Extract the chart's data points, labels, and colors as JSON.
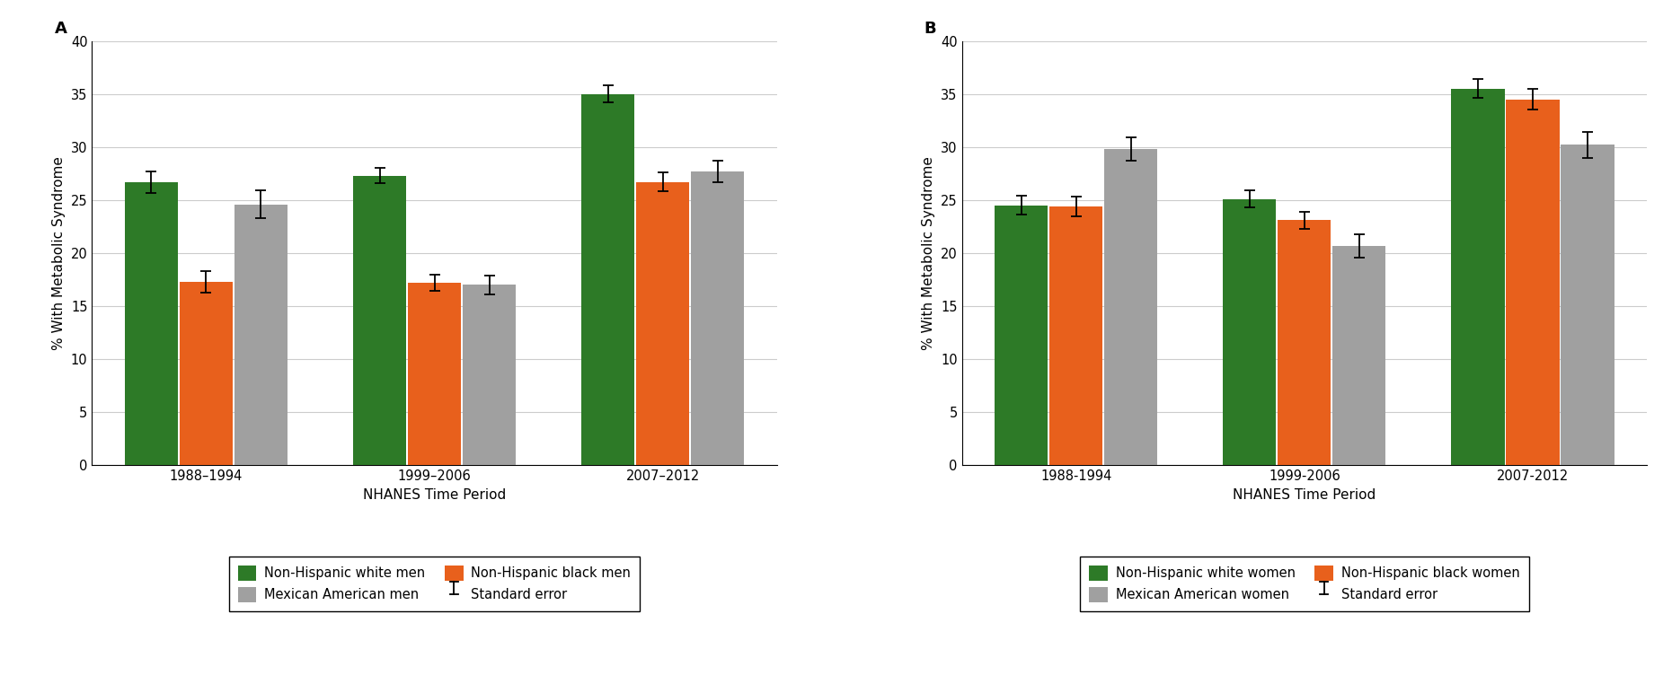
{
  "panel_A": {
    "title": "A",
    "groups": [
      "1988–1994",
      "1999–2006",
      "2007–2012"
    ],
    "series": [
      {
        "label": "Non-Hispanic white men",
        "color": "#2d7a27",
        "values": [
          26.7,
          27.3,
          35.0
        ],
        "errors": [
          1.0,
          0.7,
          0.8
        ]
      },
      {
        "label": "Non-Hispanic black men",
        "color": "#e8601c",
        "values": [
          17.3,
          17.2,
          26.7
        ],
        "errors": [
          1.0,
          0.8,
          0.9
        ]
      },
      {
        "label": "Mexican American men",
        "color": "#a0a0a0",
        "values": [
          24.6,
          17.0,
          27.7
        ],
        "errors": [
          1.3,
          0.9,
          1.0
        ]
      }
    ],
    "xlabel": "NHANES Time Period",
    "ylabel": "% With Metabolic Syndrome",
    "ylim": [
      0,
      40
    ],
    "yticks": [
      0,
      5,
      10,
      15,
      20,
      25,
      30,
      35,
      40
    ],
    "legend_row1": [
      "Non-Hispanic white men",
      "Mexican American men"
    ],
    "legend_row2": [
      "Non-Hispanic black men",
      "Standard error"
    ]
  },
  "panel_B": {
    "title": "B",
    "groups": [
      "1988-1994",
      "1999-2006",
      "2007-2012"
    ],
    "series": [
      {
        "label": "Non-Hispanic white women",
        "color": "#2d7a27",
        "values": [
          24.5,
          25.1,
          35.5
        ],
        "errors": [
          0.9,
          0.8,
          0.9
        ]
      },
      {
        "label": "Non-Hispanic black women",
        "color": "#e8601c",
        "values": [
          24.4,
          23.1,
          34.5
        ],
        "errors": [
          0.9,
          0.8,
          1.0
        ]
      },
      {
        "label": "Mexican American women",
        "color": "#a0a0a0",
        "values": [
          29.8,
          20.7,
          30.2
        ],
        "errors": [
          1.1,
          1.1,
          1.2
        ]
      }
    ],
    "xlabel": "NHANES Time Period",
    "ylabel": "% With Metabolic Syndrome",
    "ylim": [
      0,
      40
    ],
    "yticks": [
      0,
      5,
      10,
      15,
      20,
      25,
      30,
      35,
      40
    ],
    "legend_row1": [
      "Non-Hispanic white women",
      "Mexican American women"
    ],
    "legend_row2": [
      "Non-Hispanic black women",
      "Standard error"
    ]
  },
  "bar_width": 0.24,
  "figure_bg": "#ffffff",
  "panel_bg": "#ffffff",
  "grid_color": "#cccccc",
  "colors": {
    "green": "#2d7a27",
    "orange": "#e8601c",
    "gray": "#a0a0a0"
  },
  "font_family": "DejaVu Sans",
  "panel_label_fontsize": 13,
  "axis_label_fontsize": 11,
  "tick_fontsize": 10.5,
  "legend_fontsize": 10.5
}
